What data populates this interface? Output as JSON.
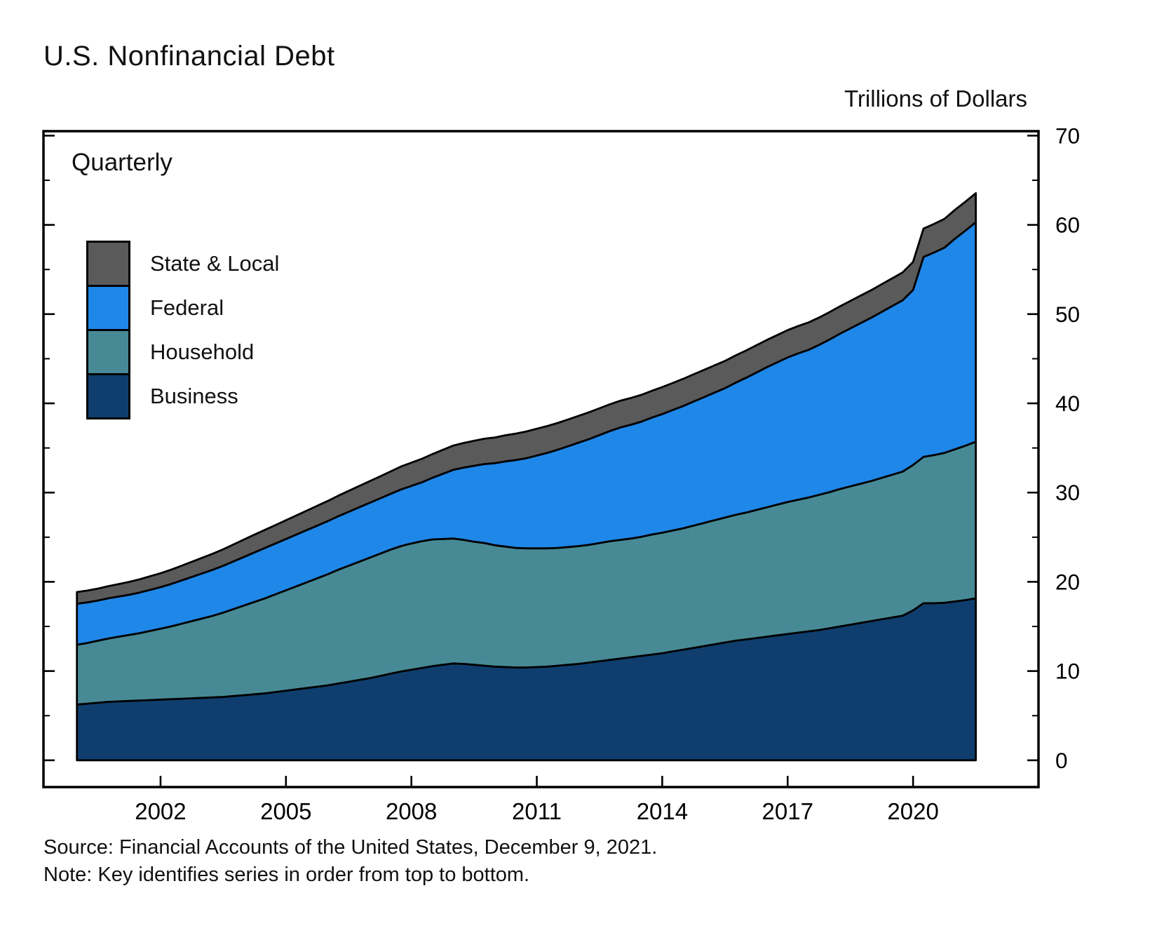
{
  "page": {
    "title": "U.S. Nonfinancial Debt",
    "units_label": "Trillions of Dollars",
    "frequency_label": "Quarterly",
    "source": "Source: Financial Accounts of the United States, December 9, 2021.",
    "note": "Note: Key identifies series in order from top to bottom."
  },
  "legend": {
    "position": "top-left-inside",
    "items": [
      {
        "label": "State & Local",
        "color": "#5a5a5a"
      },
      {
        "label": "Federal",
        "color": "#1f87e8"
      },
      {
        "label": "Household",
        "color": "#478a96"
      },
      {
        "label": "Business",
        "color": "#0f3e6e"
      }
    ]
  },
  "chart_data": {
    "type": "area",
    "stacked": true,
    "title": "U.S. Nonfinancial Debt",
    "ylabel": "Trillions of Dollars",
    "frequency": "Quarterly",
    "legend_note": "Key identifies series in order from top to bottom",
    "x_start": 2000.0,
    "x_step": 0.25,
    "x_range": [
      1999.2,
      23.8
    ],
    "x_min": 1999.2,
    "x_max": 2023.0,
    "y_min": -3,
    "y_max": 70.5,
    "y_ticks": [
      0,
      10,
      20,
      30,
      40,
      50,
      60,
      70
    ],
    "y_minor_ticks": [
      5,
      15,
      25,
      35,
      45,
      55,
      65
    ],
    "x_ticks": [
      2002,
      2005,
      2008,
      2011,
      2014,
      2017,
      2020
    ],
    "grid": false,
    "series": [
      {
        "name": "Business",
        "color": "#0f3e6e",
        "values": [
          6.25,
          6.35,
          6.45,
          6.55,
          6.6,
          6.65,
          6.7,
          6.75,
          6.8,
          6.85,
          6.9,
          6.95,
          7.0,
          7.05,
          7.1,
          7.2,
          7.3,
          7.4,
          7.5,
          7.65,
          7.8,
          7.95,
          8.1,
          8.25,
          8.4,
          8.6,
          8.8,
          9.0,
          9.2,
          9.45,
          9.7,
          9.95,
          10.15,
          10.35,
          10.55,
          10.7,
          10.85,
          10.8,
          10.7,
          10.6,
          10.5,
          10.45,
          10.4,
          10.4,
          10.45,
          10.5,
          10.6,
          10.7,
          10.8,
          10.95,
          11.1,
          11.25,
          11.4,
          11.55,
          11.7,
          11.85,
          12.0,
          12.2,
          12.4,
          12.6,
          12.8,
          13.0,
          13.2,
          13.4,
          13.55,
          13.7,
          13.85,
          14.0,
          14.15,
          14.3,
          14.45,
          14.6,
          14.8,
          15.0,
          15.2,
          15.4,
          15.6,
          15.8,
          16.0,
          16.2,
          16.8,
          17.6,
          17.6,
          17.65,
          17.8,
          17.95,
          18.15
        ]
      },
      {
        "name": "Household",
        "color": "#478a96",
        "values": [
          6.7,
          6.8,
          6.95,
          7.1,
          7.25,
          7.4,
          7.55,
          7.75,
          7.95,
          8.15,
          8.4,
          8.65,
          8.9,
          9.15,
          9.45,
          9.75,
          10.05,
          10.35,
          10.65,
          10.95,
          11.25,
          11.55,
          11.85,
          12.15,
          12.45,
          12.75,
          13.0,
          13.25,
          13.5,
          13.7,
          13.9,
          14.05,
          14.15,
          14.2,
          14.2,
          14.1,
          14.0,
          13.9,
          13.8,
          13.75,
          13.6,
          13.5,
          13.4,
          13.35,
          13.3,
          13.25,
          13.2,
          13.2,
          13.2,
          13.2,
          13.25,
          13.3,
          13.3,
          13.3,
          13.35,
          13.45,
          13.5,
          13.55,
          13.6,
          13.7,
          13.8,
          13.9,
          14.0,
          14.1,
          14.2,
          14.35,
          14.5,
          14.65,
          14.8,
          14.9,
          15.0,
          15.15,
          15.25,
          15.4,
          15.5,
          15.6,
          15.7,
          15.85,
          16.0,
          16.15,
          16.3,
          16.4,
          16.6,
          16.8,
          17.05,
          17.3,
          17.55
        ]
      },
      {
        "name": "Federal",
        "color": "#1f87e8",
        "values": [
          4.6,
          4.55,
          4.5,
          4.5,
          4.5,
          4.5,
          4.55,
          4.6,
          4.65,
          4.75,
          4.85,
          4.95,
          5.05,
          5.15,
          5.25,
          5.35,
          5.45,
          5.55,
          5.65,
          5.7,
          5.75,
          5.8,
          5.85,
          5.9,
          5.95,
          6.0,
          6.05,
          6.1,
          6.15,
          6.2,
          6.25,
          6.35,
          6.45,
          6.6,
          6.9,
          7.3,
          7.7,
          8.1,
          8.5,
          8.85,
          9.2,
          9.55,
          9.85,
          10.1,
          10.4,
          10.7,
          11.0,
          11.3,
          11.6,
          11.85,
          12.1,
          12.35,
          12.6,
          12.75,
          12.9,
          13.1,
          13.3,
          13.5,
          13.7,
          13.9,
          14.1,
          14.3,
          14.5,
          14.8,
          15.1,
          15.4,
          15.7,
          15.95,
          16.2,
          16.4,
          16.55,
          16.8,
          17.1,
          17.4,
          17.7,
          18.0,
          18.3,
          18.6,
          18.9,
          19.2,
          19.6,
          22.4,
          22.7,
          23.0,
          23.6,
          24.1,
          24.6
        ]
      },
      {
        "name": "State & Local",
        "color": "#5a5a5a",
        "values": [
          1.3,
          1.32,
          1.34,
          1.36,
          1.4,
          1.44,
          1.48,
          1.52,
          1.56,
          1.6,
          1.65,
          1.7,
          1.75,
          1.8,
          1.85,
          1.9,
          1.95,
          2.0,
          2.03,
          2.06,
          2.1,
          2.14,
          2.18,
          2.22,
          2.26,
          2.3,
          2.34,
          2.38,
          2.42,
          2.47,
          2.52,
          2.57,
          2.6,
          2.63,
          2.66,
          2.69,
          2.72,
          2.76,
          2.8,
          2.84,
          2.88,
          2.92,
          2.96,
          3.0,
          3.0,
          3.0,
          3.0,
          3.0,
          3.0,
          3.0,
          3.0,
          3.0,
          3.0,
          3.0,
          3.0,
          3.0,
          3.02,
          3.03,
          3.04,
          3.05,
          3.05,
          3.05,
          3.05,
          3.05,
          3.05,
          3.05,
          3.05,
          3.05,
          3.06,
          3.06,
          3.06,
          3.06,
          3.07,
          3.07,
          3.08,
          3.08,
          3.09,
          3.1,
          3.11,
          3.12,
          3.15,
          3.18,
          3.2,
          3.22,
          3.23,
          3.24,
          3.25
        ]
      }
    ]
  }
}
